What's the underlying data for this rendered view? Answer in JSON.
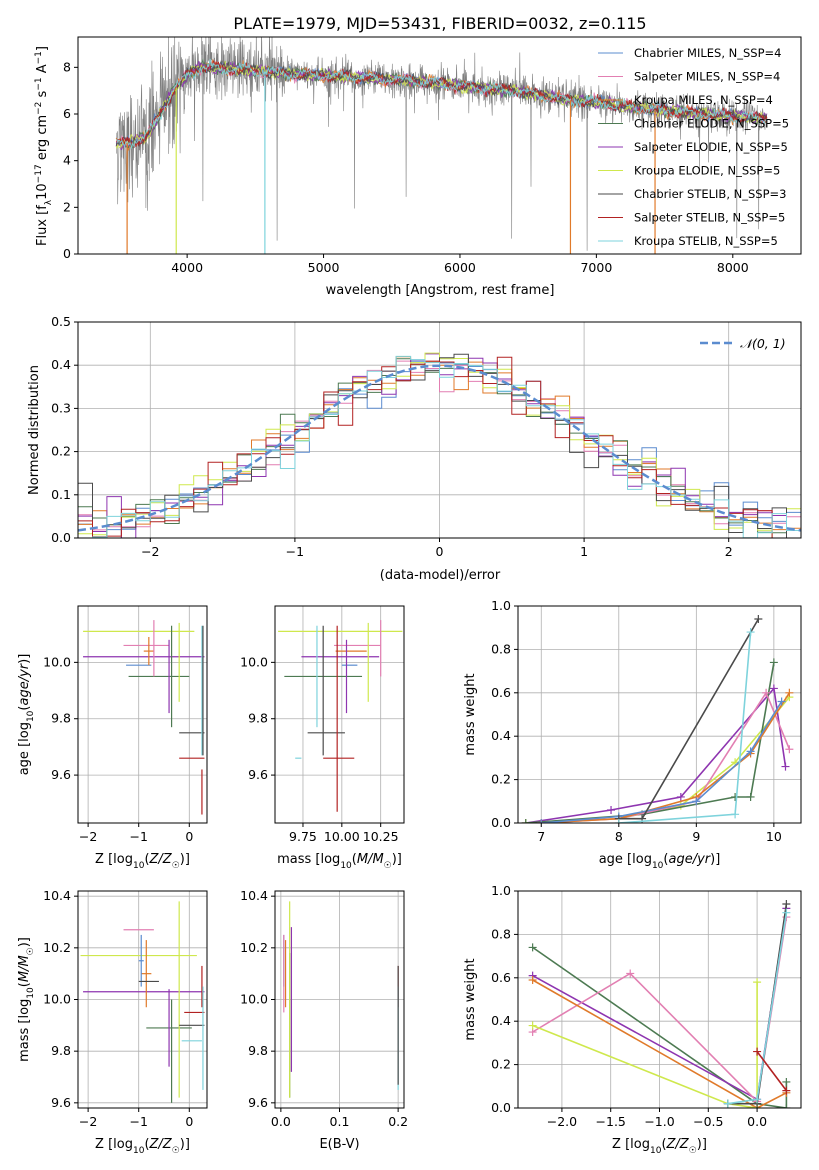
{
  "title": "PLATE=1979, MJD=53431, FIBERID=0032, z=0.115",
  "colors": {
    "chabrier_miles": "#5b8ccf",
    "salpeter_miles": "#e27fb2",
    "kroupa_miles": "#e07a2a",
    "chabrier_elodie": "#4d7a52",
    "salpeter_elodie": "#8e35b0",
    "kroupa_elodie": "#cfe84d",
    "chabrier_stelib": "#4a4a4a",
    "salpeter_stelib": "#b22222",
    "kroupa_stelib": "#7ed3dc",
    "data": "#7f7f7f",
    "normal": "#5b8ccf",
    "grid": "#b0b0b0"
  },
  "legend": {
    "normal": "𝒩(0, 1)"
  },
  "chart_data": [
    {
      "id": "spectrum",
      "type": "line",
      "xlabel": "wavelength [Angstrom, rest frame]",
      "ylabel": "Flux [f_λ 10^-17 erg cm^-2 s^-1 A^-1]",
      "xlim": [
        3200,
        8500
      ],
      "ylim": [
        0,
        9.3
      ],
      "xticks": [
        4000,
        5000,
        6000,
        7000,
        8000
      ],
      "yticks": [
        0,
        2,
        4,
        6,
        8
      ],
      "grid": false,
      "legend_position": "top-right",
      "continuum": {
        "x": [
          3480,
          3600,
          3700,
          3800,
          3900,
          4000,
          4100,
          4200,
          4400,
          4600,
          4800,
          5000,
          5200,
          5400,
          5600,
          5800,
          6000,
          6200,
          6400,
          6600,
          6800,
          7000,
          7200,
          7400,
          7600,
          7800,
          8000,
          8250
        ],
        "y": [
          4.7,
          4.8,
          5.0,
          6.0,
          7.0,
          7.7,
          8.0,
          8.0,
          7.9,
          7.8,
          7.7,
          7.65,
          7.6,
          7.5,
          7.45,
          7.35,
          7.2,
          7.1,
          7.0,
          6.8,
          6.6,
          6.5,
          6.35,
          6.2,
          6.1,
          6.0,
          5.9,
          5.8
        ]
      },
      "series": [
        {
          "name": "Chabrier MILES, N_SSP=4",
          "key": "chabrier_miles"
        },
        {
          "name": "Salpeter MILES, N_SSP=4",
          "key": "salpeter_miles"
        },
        {
          "name": "Kroupa MILES, N_SSP=4",
          "key": "kroupa_miles"
        },
        {
          "name": "Chabrier ELODIE, N_SSP=5",
          "key": "chabrier_elodie"
        },
        {
          "name": "Salpeter ELODIE, N_SSP=5",
          "key": "salpeter_elodie"
        },
        {
          "name": "Kroupa ELODIE, N_SSP=5",
          "key": "kroupa_elodie"
        },
        {
          "name": "Chabrier STELIB, N_SSP=3",
          "key": "chabrier_stelib"
        },
        {
          "name": "Salpeter STELIB, N_SSP=5",
          "key": "salpeter_stelib"
        },
        {
          "name": "Kroupa STELIB, N_SSP=5",
          "key": "kroupa_stelib"
        }
      ]
    },
    {
      "id": "residuals",
      "type": "line",
      "xlabel": "(data-model)/error",
      "ylabel": "Normed distribution",
      "xlim": [
        -2.5,
        2.5
      ],
      "ylim": [
        0,
        0.5
      ],
      "xticks": [
        -2,
        -1,
        0,
        1,
        2
      ],
      "yticks": [
        0.0,
        0.1,
        0.2,
        0.3,
        0.4,
        0.5
      ],
      "grid": true,
      "legend_position": "top-right",
      "normal_curve": {
        "mean": 0,
        "sigma": 1
      },
      "bin_width": 0.1
    },
    {
      "id": "age_vs_Z",
      "type": "scatter",
      "xlabel": "Z [log10(Z/Z☉)]",
      "ylabel": "age  [log10(age/yr)]",
      "xlim": [
        -2.2,
        0.35
      ],
      "ylim": [
        9.43,
        10.2
      ],
      "xticks": [
        -2,
        -1,
        0
      ],
      "yticks": [
        9.6,
        9.8,
        10.0
      ],
      "grid": true,
      "points": [
        {
          "key": "kroupa_elodie",
          "x": -1.0,
          "xerr": 1.1,
          "y": 10.11,
          "yerr": 0.0
        },
        {
          "key": "salpeter_elodie",
          "x": -0.9,
          "xerr": 1.2,
          "y": 10.02,
          "yerr": 0.0
        },
        {
          "key": "chabrier_miles",
          "x": -1.0,
          "xerr": 0.25,
          "y": 9.99,
          "yerr": 0.0
        },
        {
          "key": "salpeter_miles",
          "x": -0.85,
          "xerr": 0.45,
          "y": 10.06,
          "yerr": 0.0
        },
        {
          "key": "kroupa_miles",
          "x": -0.8,
          "xerr": 0.1,
          "y": 10.04,
          "yerr": 0.05
        },
        {
          "key": "chabrier_elodie",
          "x": -0.6,
          "xerr": 0.6,
          "y": 9.95,
          "yerr": 0.0
        },
        {
          "key": "salpeter_elodie",
          "x": -0.4,
          "xerr": 0.0,
          "y": 9.95,
          "yerr": 0.13
        },
        {
          "key": "chabrier_elodie",
          "x": -0.35,
          "xerr": 0.0,
          "y": 9.95,
          "yerr": 0.18
        },
        {
          "key": "kroupa_elodie",
          "x": -0.2,
          "xerr": 0.0,
          "y": 10.0,
          "yerr": 0.14
        },
        {
          "key": "salpeter_miles",
          "x": -0.7,
          "xerr": 0.0,
          "y": 10.05,
          "yerr": 0.1
        },
        {
          "key": "chabrier_stelib",
          "x": 0.05,
          "xerr": 0.25,
          "y": 9.75,
          "yerr": 0.0
        },
        {
          "key": "salpeter_stelib",
          "x": 0.05,
          "xerr": 0.25,
          "y": 9.66,
          "yerr": 0.0
        },
        {
          "key": "salpeter_stelib",
          "x": 0.25,
          "xerr": 0.0,
          "y": 9.54,
          "yerr": 0.08
        },
        {
          "key": "kroupa_stelib",
          "x": 0.25,
          "xerr": 0.0,
          "y": 9.9,
          "yerr": 0.23
        },
        {
          "key": "chabrier_stelib",
          "x": 0.27,
          "xerr": 0.0,
          "y": 9.9,
          "yerr": 0.23
        }
      ]
    },
    {
      "id": "age_vs_mass",
      "type": "scatter",
      "xlabel": "mass [log10(M/M☉)]",
      "ylabel": "",
      "xlim": [
        9.57,
        10.4
      ],
      "ylim": [
        9.43,
        10.2
      ],
      "xticks": [
        9.75,
        10.0,
        10.25
      ],
      "xticklabels": [
        "9.75",
        "10.00",
        "10.25"
      ],
      "yticks": [
        9.6,
        9.8,
        10.0
      ],
      "grid": true,
      "points": [
        {
          "key": "kroupa_elodie",
          "x": 9.99,
          "xerr": 0.4,
          "y": 10.11,
          "yerr": 0.0
        },
        {
          "key": "salpeter_elodie",
          "x": 9.99,
          "xerr": 0.25,
          "y": 10.02,
          "yerr": 0.0
        },
        {
          "key": "salpeter_miles",
          "x": 10.1,
          "xerr": 0.15,
          "y": 10.06,
          "yerr": 0.0
        },
        {
          "key": "kroupa_miles",
          "x": 10.06,
          "xerr": 0.1,
          "y": 10.04,
          "yerr": 0.0
        },
        {
          "key": "chabrier_miles",
          "x": 10.05,
          "xerr": 0.05,
          "y": 9.99,
          "yerr": 0.0
        },
        {
          "key": "chabrier_elodie",
          "x": 9.88,
          "xerr": 0.25,
          "y": 9.95,
          "yerr": 0.0
        },
        {
          "key": "chabrier_stelib",
          "x": 9.9,
          "xerr": 0.12,
          "y": 9.75,
          "yerr": 0.0
        },
        {
          "key": "salpeter_stelib",
          "x": 9.98,
          "xerr": 0.1,
          "y": 9.66,
          "yerr": 0.0
        },
        {
          "key": "kroupa_stelib",
          "x": 9.72,
          "xerr": 0.02,
          "y": 9.66,
          "yerr": 0.0
        },
        {
          "key": "kroupa_stelib",
          "x": 9.84,
          "xerr": 0.0,
          "y": 9.95,
          "yerr": 0.18
        },
        {
          "key": "chabrier_stelib",
          "x": 9.88,
          "xerr": 0.0,
          "y": 9.9,
          "yerr": 0.23
        },
        {
          "key": "salpeter_stelib",
          "x": 9.97,
          "xerr": 0.0,
          "y": 9.8,
          "yerr": 0.33
        },
        {
          "key": "salpeter_elodie",
          "x": 10.03,
          "xerr": 0.0,
          "y": 9.95,
          "yerr": 0.13
        },
        {
          "key": "kroupa_elodie",
          "x": 10.17,
          "xerr": 0.0,
          "y": 10.0,
          "yerr": 0.14
        },
        {
          "key": "salpeter_miles",
          "x": 10.25,
          "xerr": 0.0,
          "y": 10.05,
          "yerr": 0.1
        }
      ]
    },
    {
      "id": "weight_vs_age",
      "type": "line",
      "xlabel": "age  [log10(age/yr)]",
      "ylabel": "mass weight",
      "xlim": [
        6.7,
        10.35
      ],
      "ylim": [
        0,
        1.0
      ],
      "xticks": [
        7,
        8,
        9,
        10
      ],
      "yticks": [
        0.0,
        0.2,
        0.4,
        0.6,
        0.8,
        1.0
      ],
      "grid": true,
      "series": [
        {
          "key": "salpeter_elodie",
          "x": [
            6.8,
            7.9,
            8.8,
            10.0,
            10.15
          ],
          "y": [
            0.0,
            0.06,
            0.12,
            0.62,
            0.26
          ]
        },
        {
          "key": "kroupa_elodie",
          "x": [
            6.8,
            8.0,
            8.8,
            9.5,
            10.2
          ],
          "y": [
            0.0,
            0.02,
            0.08,
            0.28,
            0.58
          ]
        },
        {
          "key": "chabrier_elodie",
          "x": [
            6.8,
            8.3,
            9.5,
            9.7,
            10.0
          ],
          "y": [
            0.0,
            0.04,
            0.12,
            0.12,
            0.74
          ]
        },
        {
          "key": "salpeter_miles",
          "x": [
            7.0,
            8.0,
            9.0,
            9.9,
            10.2
          ],
          "y": [
            0.0,
            0.02,
            0.1,
            0.6,
            0.34
          ]
        },
        {
          "key": "kroupa_miles",
          "x": [
            7.0,
            8.0,
            9.0,
            9.7,
            10.2
          ],
          "y": [
            0.0,
            0.02,
            0.12,
            0.32,
            0.6
          ]
        },
        {
          "key": "chabrier_miles",
          "x": [
            7.0,
            8.0,
            9.0,
            9.7,
            10.1
          ],
          "y": [
            0.0,
            0.03,
            0.1,
            0.33,
            0.56
          ]
        },
        {
          "key": "chabrier_stelib",
          "x": [
            8.0,
            8.3,
            9.8
          ],
          "y": [
            0.02,
            0.02,
            0.94
          ]
        },
        {
          "key": "kroupa_stelib",
          "x": [
            8.0,
            9.5,
            9.7
          ],
          "y": [
            0.0,
            0.04,
            0.88
          ]
        }
      ]
    },
    {
      "id": "mass_vs_Z",
      "type": "scatter",
      "xlabel": "Z [log10(Z/Z☉)]",
      "ylabel": "mass [log10(M/M☉)]",
      "xlim": [
        -2.2,
        0.35
      ],
      "ylim": [
        9.58,
        10.42
      ],
      "xticks": [
        -2,
        -1,
        0
      ],
      "yticks": [
        9.6,
        9.8,
        10.0,
        10.2,
        10.4
      ],
      "grid": true,
      "points": [
        {
          "key": "salpeter_miles",
          "x": -1.0,
          "xerr": 0.3,
          "y": 10.27,
          "yerr": 0.0
        },
        {
          "key": "kroupa_elodie",
          "x": -1.0,
          "xerr": 1.15,
          "y": 10.17,
          "yerr": 0.0
        },
        {
          "key": "salpeter_elodie",
          "x": -0.9,
          "xerr": 1.2,
          "y": 10.03,
          "yerr": 0.0
        },
        {
          "key": "kroupa_miles",
          "x": -0.85,
          "xerr": 0.1,
          "y": 10.1,
          "yerr": 0.13
        },
        {
          "key": "chabrier_miles",
          "x": -0.95,
          "xerr": 0.05,
          "y": 10.15,
          "yerr": 0.1
        },
        {
          "key": "chabrier_stelib",
          "x": -0.8,
          "xerr": 0.2,
          "y": 10.07,
          "yerr": 0.0
        },
        {
          "key": "chabrier_elodie",
          "x": -0.4,
          "xerr": 0.45,
          "y": 9.89,
          "yerr": 0.0
        },
        {
          "key": "salpeter_elodie",
          "x": -0.4,
          "xerr": 0.0,
          "y": 9.89,
          "yerr": 0.15
        },
        {
          "key": "chabrier_elodie",
          "x": -0.35,
          "xerr": 0.0,
          "y": 9.8,
          "yerr": 0.2
        },
        {
          "key": "kroupa_elodie",
          "x": -0.2,
          "xerr": 0.0,
          "y": 10.0,
          "yerr": 0.38
        },
        {
          "key": "kroupa_stelib",
          "x": 0.05,
          "xerr": 0.2,
          "y": 9.84,
          "yerr": 0.0
        },
        {
          "key": "chabrier_stelib",
          "x": 0.05,
          "xerr": 0.25,
          "y": 9.9,
          "yerr": 0.0
        },
        {
          "key": "salpeter_stelib",
          "x": 0.1,
          "xerr": 0.2,
          "y": 9.95,
          "yerr": 0.0
        },
        {
          "key": "salpeter_stelib",
          "x": 0.25,
          "xerr": 0.0,
          "y": 10.05,
          "yerr": 0.08
        },
        {
          "key": "kroupa_stelib",
          "x": 0.27,
          "xerr": 0.0,
          "y": 9.85,
          "yerr": 0.2
        }
      ]
    },
    {
      "id": "mass_vs_ebv",
      "type": "scatter",
      "xlabel": "E(B-V)",
      "ylabel": "",
      "xlim": [
        -0.01,
        0.21
      ],
      "ylim": [
        9.58,
        10.42
      ],
      "xticks": [
        0.0,
        0.1,
        0.2
      ],
      "xticklabels": [
        "0.0",
        "0.1",
        "0.2"
      ],
      "yticks": [
        9.6,
        9.8,
        10.0,
        10.2,
        10.4
      ],
      "grid": true,
      "points": [
        {
          "key": "chabrier_miles",
          "x": 0.005,
          "xerr": 0.0,
          "y": 10.15,
          "yerr": 0.1
        },
        {
          "key": "salpeter_miles",
          "x": 0.005,
          "xerr": 0.0,
          "y": 10.1,
          "yerr": 0.15
        },
        {
          "key": "kroupa_miles",
          "x": 0.008,
          "xerr": 0.0,
          "y": 10.1,
          "yerr": 0.13
        },
        {
          "key": "chabrier_elodie",
          "x": 0.015,
          "xerr": 0.0,
          "y": 9.9,
          "yerr": 0.28
        },
        {
          "key": "kroupa_elodie",
          "x": 0.015,
          "xerr": 0.0,
          "y": 10.0,
          "yerr": 0.38
        },
        {
          "key": "salpeter_elodie",
          "x": 0.018,
          "xerr": 0.0,
          "y": 10.0,
          "yerr": 0.28
        },
        {
          "key": "salpeter_stelib",
          "x": 0.2,
          "xerr": 0.0,
          "y": 10.05,
          "yerr": 0.08
        },
        {
          "key": "kroupa_stelib",
          "x": 0.2,
          "xerr": 0.0,
          "y": 9.85,
          "yerr": 0.2
        },
        {
          "key": "chabrier_stelib",
          "x": 0.2,
          "xerr": 0.0,
          "y": 9.9,
          "yerr": 0.23
        }
      ]
    },
    {
      "id": "weight_vs_Z",
      "type": "line",
      "xlabel": "Z [log10(Z/Z☉)]",
      "ylabel": "mass weight",
      "xlim": [
        -2.45,
        0.45
      ],
      "ylim": [
        0,
        1.0
      ],
      "xticks": [
        -2.0,
        -1.5,
        -1.0,
        -0.5,
        0.0
      ],
      "xticklabels": [
        "−2.0",
        "−1.5",
        "−1.0",
        "−0.5",
        "0.0"
      ],
      "yticks": [
        0.0,
        0.2,
        0.4,
        0.6,
        0.8,
        1.0
      ],
      "grid": true,
      "series": [
        {
          "key": "chabrier_elodie",
          "x": [
            -2.3,
            0.0,
            0.3,
            0.3
          ],
          "y": [
            0.74,
            0.02,
            0.0,
            0.12
          ]
        },
        {
          "key": "salpeter_elodie",
          "x": [
            -2.3,
            0.0,
            0.3
          ],
          "y": [
            0.61,
            0.04,
            0.92
          ]
        },
        {
          "key": "salpeter_miles",
          "x": [
            -2.3,
            -1.3,
            0.0,
            0.3
          ],
          "y": [
            0.35,
            0.62,
            0.03,
            0.88
          ]
        },
        {
          "key": "kroupa_miles",
          "x": [
            -2.3,
            0.0,
            0.3
          ],
          "y": [
            0.59,
            0.0,
            0.07
          ]
        },
        {
          "key": "kroupa_elodie",
          "x": [
            -2.3,
            -0.3,
            0.0,
            0.0
          ],
          "y": [
            0.38,
            0.02,
            0.0,
            0.58
          ]
        },
        {
          "key": "chabrier_stelib",
          "x": [
            -0.3,
            0.0,
            0.3
          ],
          "y": [
            0.02,
            0.02,
            0.94
          ]
        },
        {
          "key": "kroupa_stelib",
          "x": [
            -0.3,
            0.0,
            0.3
          ],
          "y": [
            0.02,
            0.04,
            0.9
          ]
        },
        {
          "key": "salpeter_stelib",
          "x": [
            0.0,
            0.3
          ],
          "y": [
            0.26,
            0.08
          ]
        }
      ]
    }
  ]
}
